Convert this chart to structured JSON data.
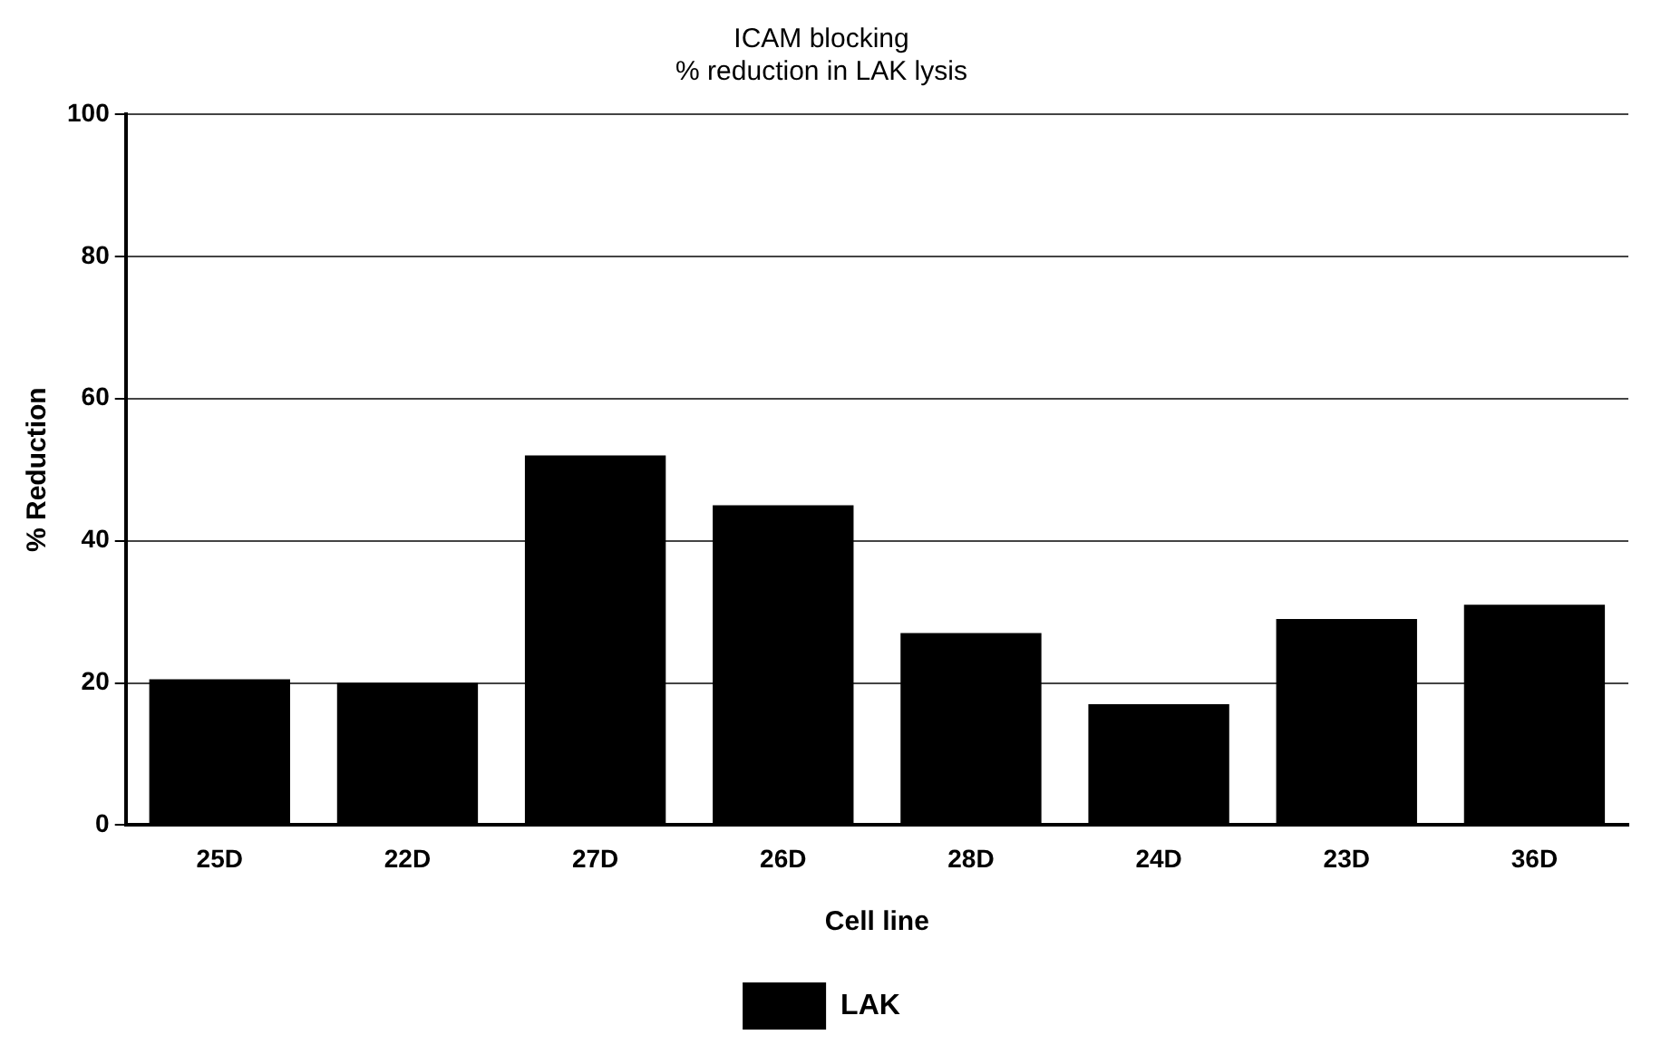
{
  "chart_data": {
    "type": "bar",
    "title": "ICAM blocking",
    "subtitle": "% reduction in LAK lysis",
    "xlabel": "Cell line",
    "ylabel": "% Reduction",
    "categories": [
      "25D",
      "22D",
      "27D",
      "26D",
      "28D",
      "24D",
      "23D",
      "36D"
    ],
    "series": [
      {
        "name": "LAK",
        "color": "#000000",
        "values": [
          20.5,
          20,
          52,
          45,
          27,
          17,
          29,
          31
        ]
      }
    ],
    "ylim": [
      0,
      100
    ],
    "yticks": [
      0,
      20,
      40,
      60,
      80,
      100
    ],
    "grid": "y",
    "legend": "bottom"
  }
}
